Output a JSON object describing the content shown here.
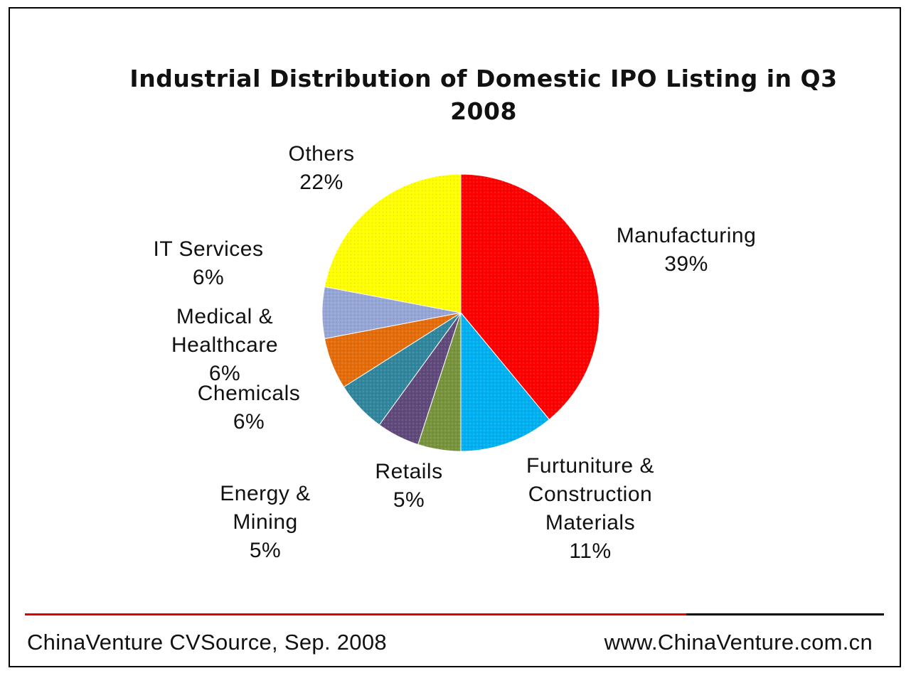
{
  "chart_data": {
    "type": "pie",
    "title_lines": [
      "Industrial Distribution of Domestic IPO Listing in Q3",
      "2008"
    ],
    "slices": [
      {
        "label_lines": [
          "Manufacturing"
        ],
        "value": 39,
        "value_label": "39%",
        "color": "#ff0000"
      },
      {
        "label_lines": [
          "Furtuniture &",
          "Construction",
          "Materials"
        ],
        "value": 11,
        "value_label": "11%",
        "color": "#00b0f0"
      },
      {
        "label_lines": [
          "Retails"
        ],
        "value": 5,
        "value_label": "5%",
        "color": "#77933c"
      },
      {
        "label_lines": [
          "Energy &",
          "Mining"
        ],
        "value": 5,
        "value_label": "5%",
        "color": "#604a7b"
      },
      {
        "label_lines": [
          "Chemicals"
        ],
        "value": 6,
        "value_label": "6%",
        "color": "#31859c"
      },
      {
        "label_lines": [
          "Medical &",
          "Healthcare"
        ],
        "value": 6,
        "value_label": "6%",
        "color": "#e46c0a"
      },
      {
        "label_lines": [
          "IT Services"
        ],
        "value": 6,
        "value_label": "6%",
        "color": "#95a5d5"
      },
      {
        "label_lines": [
          "Others"
        ],
        "value": 22,
        "value_label": "22%",
        "color": "#ffff00"
      }
    ]
  },
  "footer": {
    "source": "ChinaVenture CVSource, Sep. 2008",
    "website": "www.ChinaVenture.com.cn"
  }
}
